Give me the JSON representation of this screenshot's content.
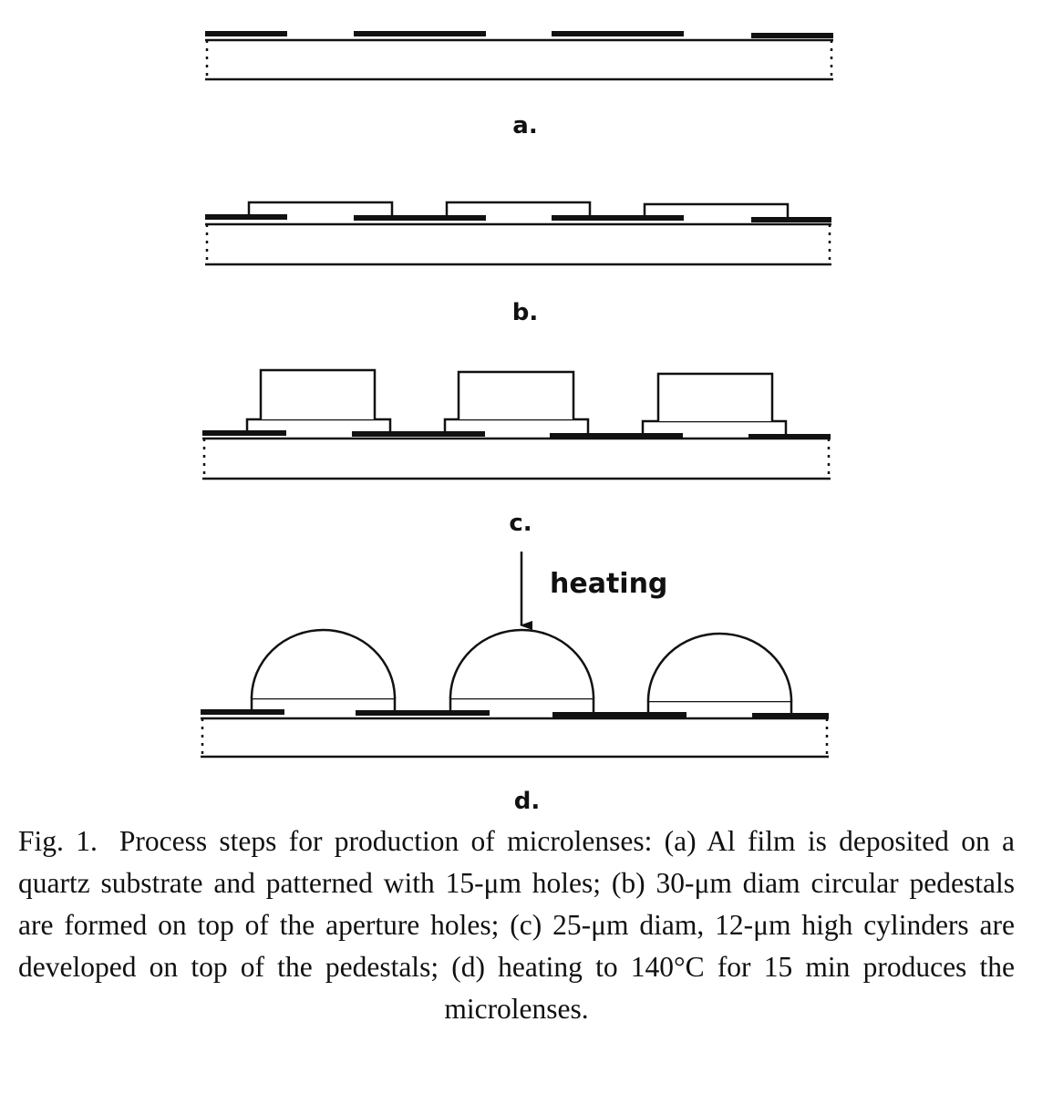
{
  "steps": [
    {
      "label": "a."
    },
    {
      "label": "b."
    },
    {
      "label": "c."
    },
    {
      "label": "d."
    }
  ],
  "arrow_label": "heating",
  "caption": {
    "fig": "Fig. 1.",
    "text": "Process steps for production of microlenses: (a) Al film is deposited on a quartz substrate and patterned with 15-μm holes; (b) 30-μm diam circular pedestals are formed on top of the aperture holes; (c) 25-μm diam, 12-μm high cylinders are developed on top of the pedestals; (d) heating to 140°C for 15 min produces the microlenses."
  }
}
